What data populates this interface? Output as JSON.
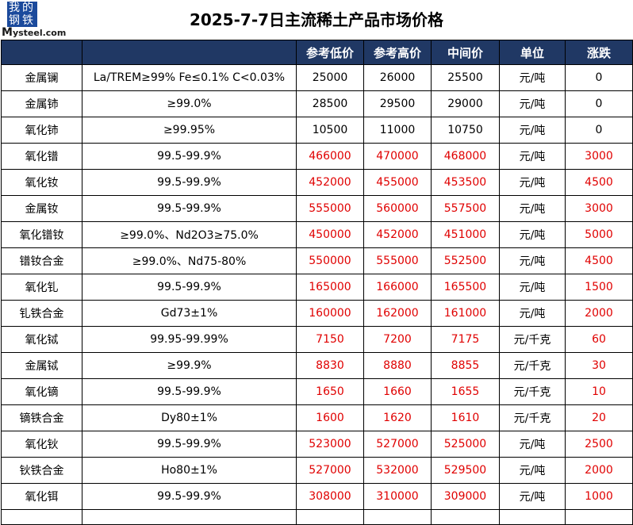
{
  "logo": {
    "cn_1": "我",
    "cn_2": "的",
    "cn_3": "钢",
    "cn_4": "铁",
    "text_brand": "M",
    "text_rest": "ysteel.com"
  },
  "title": "2025-7-7日主流稀土产品市场价格",
  "colors": {
    "header_bg": "#203864",
    "up": "#e00000"
  },
  "headers": [
    "",
    "",
    "参考低价",
    "参考高价",
    "中间价",
    "单位",
    "涨跌"
  ],
  "rows": [
    {
      "name": "金属镧",
      "spec": "La/TREM≥99% Fe≤0.1% C<0.03%",
      "low": "25000",
      "high": "26000",
      "mid": "25500",
      "unit": "元/吨",
      "change": "0",
      "up": false
    },
    {
      "name": "金属铈",
      "spec": "≥99.0%",
      "low": "28500",
      "high": "29500",
      "mid": "29000",
      "unit": "元/吨",
      "change": "0",
      "up": false
    },
    {
      "name": "氧化铈",
      "spec": "≥99.95%",
      "low": "10500",
      "high": "11000",
      "mid": "10750",
      "unit": "元/吨",
      "change": "0",
      "up": false
    },
    {
      "name": "氧化镨",
      "spec": "99.5-99.9%",
      "low": "466000",
      "high": "470000",
      "mid": "468000",
      "unit": "元/吨",
      "change": "3000",
      "up": true
    },
    {
      "name": "氧化钕",
      "spec": "99.5-99.9%",
      "low": "452000",
      "high": "455000",
      "mid": "453500",
      "unit": "元/吨",
      "change": "4500",
      "up": true
    },
    {
      "name": "金属钕",
      "spec": "99.5-99.9%",
      "low": "555000",
      "high": "560000",
      "mid": "557500",
      "unit": "元/吨",
      "change": "3000",
      "up": true
    },
    {
      "name": "氧化镨钕",
      "spec": "≥99.0%、Nd2O3≥75.0%",
      "low": "450000",
      "high": "452000",
      "mid": "451000",
      "unit": "元/吨",
      "change": "5000",
      "up": true
    },
    {
      "name": "镨钕合金",
      "spec": "≥99.0%、Nd75-80%",
      "low": "550000",
      "high": "555000",
      "mid": "552500",
      "unit": "元/吨",
      "change": "4500",
      "up": true
    },
    {
      "name": "氧化钆",
      "spec": "99.5-99.9%",
      "low": "165000",
      "high": "166000",
      "mid": "165500",
      "unit": "元/吨",
      "change": "1500",
      "up": true
    },
    {
      "name": "钆铁合金",
      "spec": "Gd73±1%",
      "low": "160000",
      "high": "162000",
      "mid": "161000",
      "unit": "元/吨",
      "change": "2000",
      "up": true
    },
    {
      "name": "氧化铽",
      "spec": "99.95-99.99%",
      "low": "7150",
      "high": "7200",
      "mid": "7175",
      "unit": "元/千克",
      "change": "60",
      "up": true
    },
    {
      "name": "金属铽",
      "spec": "≥99.9%",
      "low": "8830",
      "high": "8880",
      "mid": "8855",
      "unit": "元/千克",
      "change": "30",
      "up": true
    },
    {
      "name": "氧化镝",
      "spec": "99.5-99.9%",
      "low": "1650",
      "high": "1660",
      "mid": "1655",
      "unit": "元/千克",
      "change": "10",
      "up": true
    },
    {
      "name": "镝铁合金",
      "spec": "Dy80±1%",
      "low": "1600",
      "high": "1620",
      "mid": "1610",
      "unit": "元/千克",
      "change": "20",
      "up": true
    },
    {
      "name": "氧化钬",
      "spec": "99.5-99.9%",
      "low": "523000",
      "high": "527000",
      "mid": "525000",
      "unit": "元/吨",
      "change": "2500",
      "up": true
    },
    {
      "name": "钬铁合金",
      "spec": "Ho80±1%",
      "low": "527000",
      "high": "532000",
      "mid": "529500",
      "unit": "元/吨",
      "change": "2000",
      "up": true
    },
    {
      "name": "氧化铒",
      "spec": "99.5-99.9%",
      "low": "308000",
      "high": "310000",
      "mid": "309000",
      "unit": "元/吨",
      "change": "1000",
      "up": true
    }
  ]
}
